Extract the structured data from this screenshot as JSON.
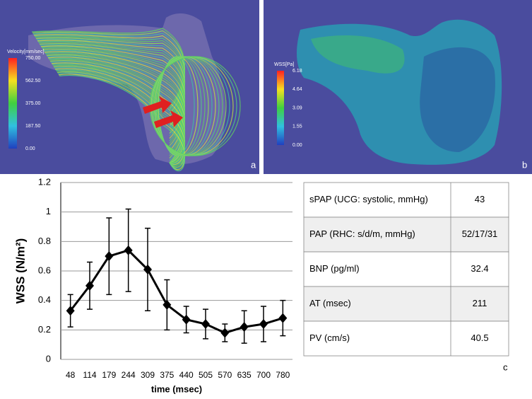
{
  "panels": [
    {
      "letter": "a",
      "colorbar_title": "Velocity[mm/sec]",
      "colorbar_labels": [
        "750.00",
        "562.50",
        "375.00",
        "187.50",
        "0.00"
      ]
    },
    {
      "letter": "b",
      "colorbar_title": "WSS[Pa]",
      "colorbar_labels": [
        "6.18",
        "4.64",
        "3.09",
        "1.55",
        "0.00"
      ]
    }
  ],
  "chart_data": {
    "type": "line",
    "ylabel": "WSS (N/m²)",
    "xlabel": "time (msec)",
    "categories": [
      "48",
      "114",
      "179",
      "244",
      "309",
      "375",
      "440",
      "505",
      "570",
      "635",
      "700",
      "780"
    ],
    "values": [
      0.33,
      0.5,
      0.7,
      0.74,
      0.61,
      0.37,
      0.27,
      0.24,
      0.18,
      0.22,
      0.24,
      0.28
    ],
    "errors": [
      0.11,
      0.16,
      0.26,
      0.28,
      0.28,
      0.17,
      0.09,
      0.1,
      0.06,
      0.11,
      0.12,
      0.12
    ],
    "color": "#000000",
    "ylim": [
      0,
      1.2
    ],
    "yticks": [
      0,
      0.2,
      0.4,
      0.6,
      0.8,
      1,
      1.2
    ],
    "grid": true
  },
  "table": {
    "rows": [
      [
        "sPAP (UCG: systolic, mmHg)",
        "43"
      ],
      [
        "PAP (RHC: s/d/m, mmHg)",
        "52/17/31"
      ],
      [
        "BNP (pg/ml)",
        "32.4"
      ],
      [
        "AT (msec)",
        "211"
      ],
      [
        "PV (cm/s)",
        "40.5"
      ]
    ]
  },
  "letter": "c"
}
